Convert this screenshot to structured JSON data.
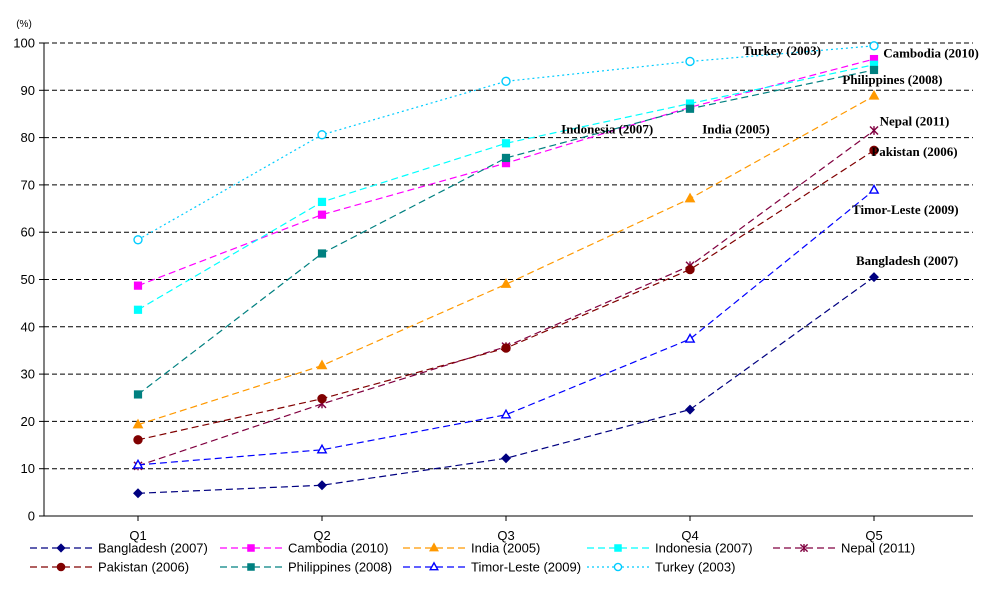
{
  "chart_data": {
    "type": "line",
    "title": "",
    "xlabel": "",
    "ylabel": "",
    "unit": "(%)",
    "categories": [
      "Q1",
      "Q2",
      "Q3",
      "Q4",
      "Q5"
    ],
    "ylim": [
      0,
      100
    ],
    "yticks": [
      0,
      10,
      20,
      30,
      40,
      50,
      60,
      70,
      80,
      90,
      100
    ],
    "grid": true,
    "legend_position": "bottom",
    "series": [
      {
        "name": "Bangladesh (2007)",
        "values": [
          4.8,
          6.5,
          12.2,
          22.5,
          50.5
        ],
        "color": "#000080",
        "marker": "diamond",
        "dash": "dashed",
        "fill": true
      },
      {
        "name": "Cambodia (2010)",
        "values": [
          48.7,
          63.7,
          74.6,
          86.4,
          96.6
        ],
        "color": "#ff00ff",
        "marker": "square",
        "dash": "dashed",
        "fill": true
      },
      {
        "name": "India (2005)",
        "values": [
          19.3,
          31.8,
          49.0,
          67.1,
          88.8
        ],
        "color": "#ff9900",
        "marker": "triangle",
        "dash": "dashed",
        "fill": true
      },
      {
        "name": "Indonesia (2007)",
        "values": [
          43.6,
          66.4,
          78.8,
          87.2,
          95.4
        ],
        "color": "#00ffff",
        "marker": "square",
        "dash": "dashed",
        "fill": true
      },
      {
        "name": "Nepal (2011)",
        "values": [
          10.6,
          23.7,
          35.8,
          52.9,
          81.5
        ],
        "color": "#800040",
        "marker": "star",
        "dash": "dashed",
        "fill": false
      },
      {
        "name": "Pakistan (2006)",
        "values": [
          16.1,
          24.8,
          35.5,
          52.1,
          77.3
        ],
        "color": "#800000",
        "marker": "circle",
        "dash": "dashed",
        "fill": true
      },
      {
        "name": "Philippines (2008)",
        "values": [
          25.7,
          55.5,
          75.7,
          86.1,
          94.3
        ],
        "color": "#008080",
        "marker": "square",
        "dash": "dashed",
        "fill": true
      },
      {
        "name": "Timor-Leste (2009)",
        "values": [
          10.8,
          14.0,
          21.4,
          37.4,
          68.9
        ],
        "color": "#0000ff",
        "marker": "triangle",
        "dash": "dashed",
        "fill": false
      },
      {
        "name": "Turkey (2003)",
        "values": [
          58.4,
          80.6,
          91.9,
          96.1,
          99.4
        ],
        "color": "#00ccff",
        "marker": "circle",
        "dash": "dotted",
        "fill": false
      }
    ],
    "annotations": [
      {
        "text": "Turkey (2003)",
        "x": 3.5,
        "y": 97.5,
        "anchor": "middle"
      },
      {
        "text": "Cambodia (2010)",
        "x": 4.05,
        "y": 96.9,
        "anchor": "start"
      },
      {
        "text": "Philippines (2008)",
        "x": 4.1,
        "y": 91.3,
        "anchor": "middle"
      },
      {
        "text": "Indonesia (2007)",
        "x": 2.55,
        "y": 80.9,
        "anchor": "middle"
      },
      {
        "text": "India (2005)",
        "x": 3.25,
        "y": 80.9,
        "anchor": "middle"
      },
      {
        "text": "Nepal (2011)",
        "x": 4.22,
        "y": 82.6,
        "anchor": "middle"
      },
      {
        "text": "Pakistan (2006)",
        "x": 4.22,
        "y": 76.1,
        "anchor": "middle"
      },
      {
        "text": "Timor-Leste (2009)",
        "x": 4.17,
        "y": 63.8,
        "anchor": "middle"
      },
      {
        "text": "Bangladesh (2007)",
        "x": 4.18,
        "y": 53.1,
        "anchor": "middle"
      }
    ]
  }
}
